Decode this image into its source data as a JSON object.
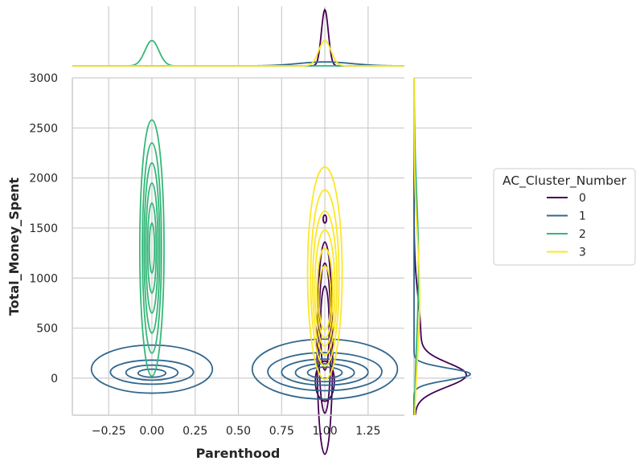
{
  "chart_data": {
    "type": "kde-contour-jointplot",
    "xlabel": "Parenthood",
    "ylabel": "Total_Money_Spent",
    "xlim": [
      -0.46,
      1.46
    ],
    "ylim": [
      -370,
      3000
    ],
    "x_ticks": [
      -0.25,
      0.0,
      0.25,
      0.5,
      0.75,
      1.0,
      1.25
    ],
    "x_tick_labels": [
      "−0.25",
      "0.00",
      "0.25",
      "0.50",
      "0.75",
      "1.00",
      "1.25"
    ],
    "y_ticks": [
      0,
      500,
      1000,
      1500,
      2000,
      2500,
      3000
    ],
    "y_tick_labels": [
      "0",
      "500",
      "1000",
      "1500",
      "2000",
      "2500",
      "3000"
    ],
    "grid": true,
    "legend": {
      "title": "AC_Cluster_Number",
      "placement": "right-outside",
      "entries": [
        "0",
        "1",
        "2",
        "3"
      ]
    },
    "series": [
      {
        "name": "0",
        "color": "#440154",
        "contours": [
          {
            "cx": 1.0,
            "cy": -30,
            "rx": 0.055,
            "ry": 200
          },
          {
            "cx": 1.0,
            "cy": 300,
            "rx": 0.045,
            "ry": 1060
          },
          {
            "cx": 1.0,
            "cy": 400,
            "rx": 0.035,
            "ry": 750
          },
          {
            "cx": 1.0,
            "cy": 500,
            "rx": 0.025,
            "ry": 420
          },
          {
            "cx": 1.0,
            "cy": 1590,
            "rx": 0.01,
            "ry": 40
          }
        ],
        "marginal_x": {
          "center": 1.0,
          "height": 1.0,
          "width": 0.02
        },
        "marginal_y": [
          {
            "center": 30,
            "height": 0.85,
            "width": 120
          },
          {
            "center": 400,
            "height": 0.12,
            "width": 400
          }
        ]
      },
      {
        "name": "1",
        "color": "#31688e",
        "contours": [
          {
            "cx": 0.0,
            "cy": 90,
            "rx": 0.35,
            "ry": 240
          },
          {
            "cx": 0.0,
            "cy": 60,
            "rx": 0.24,
            "ry": 120
          },
          {
            "cx": 0.0,
            "cy": 55,
            "rx": 0.15,
            "ry": 75
          },
          {
            "cx": 0.0,
            "cy": 50,
            "rx": 0.08,
            "ry": 40
          },
          {
            "cx": 1.0,
            "cy": 90,
            "rx": 0.42,
            "ry": 300
          },
          {
            "cx": 1.0,
            "cy": 65,
            "rx": 0.33,
            "ry": 190
          },
          {
            "cx": 1.0,
            "cy": 60,
            "rx": 0.25,
            "ry": 130
          },
          {
            "cx": 1.0,
            "cy": 55,
            "rx": 0.17,
            "ry": 90
          },
          {
            "cx": 1.0,
            "cy": 55,
            "rx": 0.1,
            "ry": 55
          }
        ],
        "marginal_x": {
          "center": 1.0,
          "height": 0.07,
          "width": 0.15
        },
        "marginal_y": [
          {
            "center": 40,
            "height": 1.0,
            "width": 60
          }
        ]
      },
      {
        "name": "2",
        "color": "#35b779",
        "contours": [
          {
            "cx": 0.0,
            "cy": 1300,
            "rx": 0.07,
            "ry": 1280
          },
          {
            "cx": 0.0,
            "cy": 1300,
            "rx": 0.055,
            "ry": 1050
          },
          {
            "cx": 0.0,
            "cy": 1300,
            "rx": 0.045,
            "ry": 850
          },
          {
            "cx": 0.0,
            "cy": 1300,
            "rx": 0.035,
            "ry": 650
          },
          {
            "cx": 0.0,
            "cy": 1300,
            "rx": 0.025,
            "ry": 450
          },
          {
            "cx": 0.0,
            "cy": 1300,
            "rx": 0.015,
            "ry": 250
          }
        ],
        "marginal_x": {
          "center": 0.0,
          "height": 0.45,
          "width": 0.04
        },
        "marginal_y": [
          {
            "center": 1100,
            "height": 0.08,
            "width": 700
          }
        ]
      },
      {
        "name": "3",
        "color": "#fde725",
        "contours": [
          {
            "cx": 1.0,
            "cy": 1050,
            "rx": 0.1,
            "ry": 1060
          },
          {
            "cx": 1.0,
            "cy": 1000,
            "rx": 0.082,
            "ry": 880
          },
          {
            "cx": 1.0,
            "cy": 950,
            "rx": 0.07,
            "ry": 720
          },
          {
            "cx": 1.0,
            "cy": 900,
            "rx": 0.058,
            "ry": 580
          },
          {
            "cx": 1.0,
            "cy": 850,
            "rx": 0.046,
            "ry": 450
          },
          {
            "cx": 1.0,
            "cy": 800,
            "rx": 0.035,
            "ry": 320
          }
        ],
        "marginal_x": {
          "center": 1.0,
          "height": 0.45,
          "width": 0.035
        },
        "marginal_y": [
          {
            "center": 800,
            "height": 0.1,
            "width": 600
          }
        ]
      }
    ]
  }
}
